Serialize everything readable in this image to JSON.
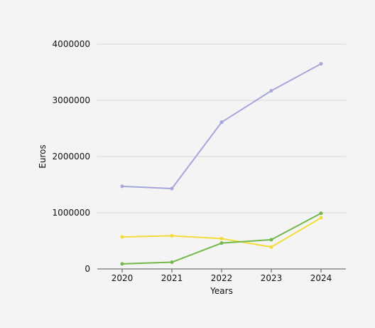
{
  "chart_data": {
    "type": "line",
    "xlabel": "Years",
    "ylabel": "Euros",
    "categories": [
      "2020",
      "2021",
      "2022",
      "2023",
      "2024"
    ],
    "ylim": [
      0,
      4000000
    ],
    "yticks": [
      0,
      1000000,
      2000000,
      3000000,
      4000000
    ],
    "ytick_labels": [
      "0",
      "1000000",
      "2000000",
      "3000000",
      "4000000"
    ],
    "grid": true,
    "legend": "none",
    "series": [
      {
        "color": "#a5a6dc",
        "values": [
          1470000,
          1430000,
          2610000,
          3170000,
          3650000
        ]
      },
      {
        "color": "#f2dc3a",
        "values": [
          570000,
          590000,
          540000,
          390000,
          910000
        ]
      },
      {
        "color": "#72b84b",
        "values": [
          90000,
          120000,
          460000,
          520000,
          990000
        ]
      }
    ]
  }
}
